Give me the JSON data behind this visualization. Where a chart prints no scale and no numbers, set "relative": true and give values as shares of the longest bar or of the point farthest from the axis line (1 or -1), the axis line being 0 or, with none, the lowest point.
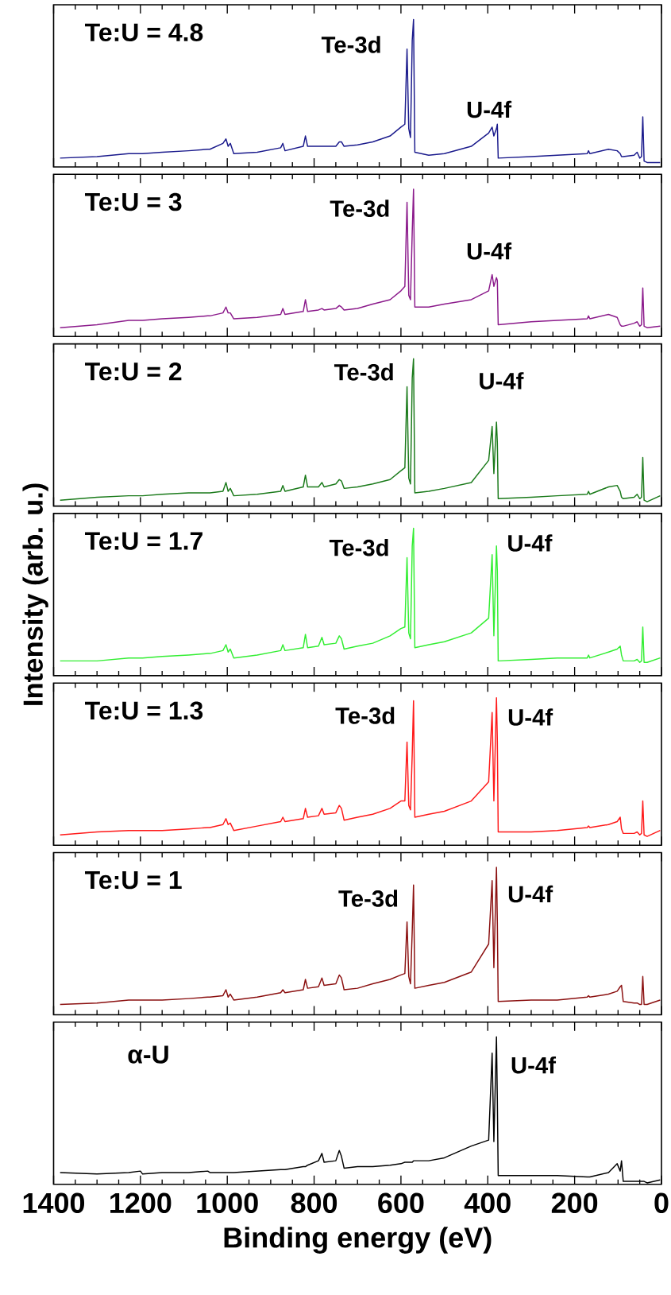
{
  "chart_data": [
    {
      "type": "line",
      "relative": true,
      "color": "#1a1a8c",
      "xlim": [
        1400,
        0
      ],
      "xticks": [
        1400,
        1200,
        1000,
        800,
        600,
        400,
        200,
        0
      ],
      "tick_labels": false,
      "annotations": [
        "Te:U = 4.8",
        "Te-3d",
        "U-4f"
      ],
      "x": [
        1385,
        1300,
        1227,
        1200,
        1195,
        1150,
        1089,
        1045,
        1040,
        1010,
        1003,
        998,
        993,
        985,
        931,
        877,
        872,
        867,
        825,
        820,
        815,
        790,
        782,
        777,
        750,
        742,
        737,
        731,
        700,
        665,
        625,
        600,
        591,
        586,
        582,
        578,
        574,
        571,
        568,
        536,
        500,
        438,
        398,
        390,
        386,
        380,
        378,
        376,
        300,
        240,
        171,
        168,
        165,
        122,
        102,
        95,
        92,
        88,
        63,
        56,
        50,
        46,
        43,
        40,
        33,
        3
      ],
      "values": [
        0.06,
        0.07,
        0.09,
        0.09,
        0.09,
        0.1,
        0.11,
        0.12,
        0.12,
        0.16,
        0.19,
        0.14,
        0.16,
        0.09,
        0.1,
        0.13,
        0.16,
        0.11,
        0.14,
        0.21,
        0.14,
        0.14,
        0.14,
        0.14,
        0.14,
        0.17,
        0.17,
        0.14,
        0.15,
        0.17,
        0.21,
        0.27,
        0.29,
        0.8,
        0.26,
        0.2,
        0.86,
        1,
        0.1,
        0.08,
        0.09,
        0.14,
        0.23,
        0.27,
        0.21,
        0.26,
        0.29,
        0.06,
        0.07,
        0.08,
        0.09,
        0.11,
        0.09,
        0.12,
        0.11,
        0.09,
        0.07,
        0.07,
        0.08,
        0.1,
        0.06,
        0.07,
        0.34,
        0.04,
        0.03,
        0.03
      ]
    },
    {
      "type": "line",
      "relative": true,
      "color": "#8b1a8b",
      "xlim": [
        1400,
        0
      ],
      "xticks": [
        1400,
        1200,
        1000,
        800,
        600,
        400,
        200,
        0
      ],
      "tick_labels": false,
      "annotations": [
        "Te:U = 3",
        "Te-3d",
        "U-4f"
      ],
      "x": [
        1385,
        1300,
        1227,
        1200,
        1195,
        1150,
        1089,
        1045,
        1040,
        1010,
        1003,
        998,
        993,
        985,
        931,
        877,
        872,
        867,
        825,
        820,
        815,
        790,
        782,
        777,
        750,
        742,
        737,
        731,
        700,
        665,
        625,
        600,
        591,
        586,
        582,
        578,
        574,
        571,
        568,
        536,
        500,
        438,
        398,
        390,
        386,
        380,
        378,
        376,
        300,
        240,
        171,
        168,
        165,
        122,
        102,
        95,
        92,
        88,
        63,
        56,
        50,
        46,
        43,
        40,
        33,
        3
      ],
      "values": [
        0.06,
        0.08,
        0.11,
        0.11,
        0.11,
        0.12,
        0.13,
        0.14,
        0.14,
        0.16,
        0.2,
        0.16,
        0.16,
        0.12,
        0.13,
        0.15,
        0.19,
        0.15,
        0.17,
        0.25,
        0.17,
        0.18,
        0.19,
        0.18,
        0.19,
        0.21,
        0.2,
        0.18,
        0.19,
        0.22,
        0.25,
        0.31,
        0.34,
        0.91,
        0.28,
        0.25,
        0.71,
        1,
        0.2,
        0.2,
        0.22,
        0.25,
        0.31,
        0.42,
        0.34,
        0.4,
        0.38,
        0.08,
        0.1,
        0.11,
        0.12,
        0.14,
        0.12,
        0.15,
        0.13,
        0.08,
        0.07,
        0.07,
        0.09,
        0.1,
        0.07,
        0.08,
        0.33,
        0.07,
        0.06,
        0.07
      ]
    },
    {
      "type": "line",
      "relative": true,
      "color": "#1a7a1a",
      "xlim": [
        1400,
        0
      ],
      "xticks": [
        1400,
        1200,
        1000,
        800,
        600,
        400,
        200,
        0
      ],
      "tick_labels": false,
      "annotations": [
        "Te:U = 2",
        "Te-3d",
        "U-4f"
      ],
      "x": [
        1385,
        1300,
        1227,
        1200,
        1195,
        1150,
        1089,
        1045,
        1040,
        1010,
        1003,
        998,
        993,
        985,
        931,
        877,
        872,
        867,
        825,
        820,
        815,
        790,
        782,
        777,
        750,
        742,
        737,
        731,
        700,
        665,
        625,
        600,
        591,
        586,
        582,
        578,
        574,
        571,
        568,
        536,
        500,
        438,
        398,
        390,
        386,
        380,
        378,
        376,
        300,
        240,
        171,
        168,
        165,
        122,
        102,
        95,
        92,
        88,
        63,
        56,
        50,
        46,
        43,
        40,
        33,
        3
      ],
      "values": [
        0.04,
        0.06,
        0.07,
        0.07,
        0.07,
        0.08,
        0.09,
        0.09,
        0.09,
        0.1,
        0.16,
        0.1,
        0.12,
        0.07,
        0.08,
        0.1,
        0.14,
        0.1,
        0.13,
        0.21,
        0.13,
        0.13,
        0.16,
        0.13,
        0.15,
        0.18,
        0.17,
        0.12,
        0.13,
        0.15,
        0.18,
        0.24,
        0.26,
        0.81,
        0.19,
        0.15,
        0.87,
        1,
        0.09,
        0.1,
        0.12,
        0.16,
        0.31,
        0.54,
        0.22,
        0.57,
        0.43,
        0.05,
        0.06,
        0.07,
        0.08,
        0.1,
        0.08,
        0.13,
        0.14,
        0.1,
        0.06,
        0.05,
        0.06,
        0.08,
        0.05,
        0.06,
        0.33,
        0.04,
        0.03,
        0.07
      ]
    },
    {
      "type": "line",
      "relative": true,
      "color": "#33ee33",
      "xlim": [
        1400,
        0
      ],
      "xticks": [
        1400,
        1200,
        1000,
        800,
        600,
        400,
        200,
        0
      ],
      "tick_labels": false,
      "ylabel": "Intensity (arb. u.)",
      "annotations": [
        "Te:U = 1.7",
        "Te-3d",
        "U-4f"
      ],
      "x": [
        1385,
        1300,
        1227,
        1200,
        1195,
        1150,
        1089,
        1045,
        1040,
        1010,
        1003,
        998,
        993,
        985,
        931,
        877,
        872,
        867,
        825,
        820,
        815,
        790,
        782,
        777,
        750,
        742,
        737,
        731,
        700,
        665,
        625,
        600,
        591,
        586,
        582,
        578,
        574,
        571,
        568,
        536,
        500,
        438,
        398,
        390,
        386,
        380,
        378,
        376,
        300,
        240,
        171,
        168,
        165,
        122,
        102,
        95,
        92,
        88,
        63,
        56,
        50,
        46,
        43,
        40,
        33,
        3
      ],
      "values": [
        0.1,
        0.1,
        0.12,
        0.12,
        0.12,
        0.13,
        0.14,
        0.15,
        0.15,
        0.17,
        0.21,
        0.16,
        0.18,
        0.12,
        0.14,
        0.17,
        0.21,
        0.17,
        0.19,
        0.28,
        0.19,
        0.2,
        0.26,
        0.21,
        0.22,
        0.27,
        0.25,
        0.18,
        0.2,
        0.22,
        0.27,
        0.32,
        0.33,
        0.8,
        0.29,
        0.25,
        0.88,
        1,
        0.19,
        0.21,
        0.23,
        0.29,
        0.39,
        0.82,
        0.27,
        0.88,
        0.71,
        0.1,
        0.11,
        0.12,
        0.12,
        0.14,
        0.12,
        0.16,
        0.18,
        0.2,
        0.14,
        0.1,
        0.1,
        0.11,
        0.09,
        0.1,
        0.33,
        0.09,
        0.09,
        0.12
      ]
    },
    {
      "type": "line",
      "relative": true,
      "color": "#ff1a1a",
      "xlim": [
        1400,
        0
      ],
      "xticks": [
        1400,
        1200,
        1000,
        800,
        600,
        400,
        200,
        0
      ],
      "tick_labels": false,
      "annotations": [
        "Te:U = 1.3",
        "Te-3d",
        "U-4f"
      ],
      "x": [
        1385,
        1300,
        1227,
        1200,
        1195,
        1150,
        1089,
        1045,
        1040,
        1010,
        1003,
        998,
        993,
        985,
        931,
        877,
        872,
        867,
        825,
        820,
        815,
        790,
        782,
        777,
        750,
        742,
        737,
        731,
        700,
        665,
        625,
        600,
        591,
        586,
        582,
        578,
        574,
        571,
        568,
        536,
        500,
        438,
        398,
        390,
        386,
        380,
        378,
        376,
        300,
        240,
        171,
        168,
        165,
        122,
        102,
        95,
        92,
        88,
        63,
        56,
        50,
        46,
        43,
        40,
        33,
        3
      ],
      "values": [
        0.07,
        0.09,
        0.1,
        0.1,
        0.1,
        0.1,
        0.11,
        0.12,
        0.12,
        0.14,
        0.18,
        0.14,
        0.15,
        0.1,
        0.13,
        0.16,
        0.19,
        0.16,
        0.18,
        0.25,
        0.19,
        0.2,
        0.25,
        0.21,
        0.22,
        0.27,
        0.25,
        0.17,
        0.19,
        0.21,
        0.25,
        0.3,
        0.3,
        0.7,
        0.27,
        0.24,
        0.62,
        0.98,
        0.19,
        0.21,
        0.23,
        0.3,
        0.43,
        0.9,
        0.3,
        1,
        0.71,
        0.09,
        0.09,
        0.1,
        0.12,
        0.13,
        0.12,
        0.14,
        0.16,
        0.19,
        0.11,
        0.08,
        0.08,
        0.09,
        0.07,
        0.08,
        0.3,
        0.07,
        0.06,
        0.1
      ]
    },
    {
      "type": "line",
      "relative": true,
      "color": "#8b1010",
      "xlim": [
        1400,
        0
      ],
      "xticks": [
        1400,
        1200,
        1000,
        800,
        600,
        400,
        200,
        0
      ],
      "tick_labels": false,
      "annotations": [
        "Te:U = 1",
        "Te-3d",
        "U-4f"
      ],
      "x": [
        1385,
        1300,
        1227,
        1200,
        1195,
        1150,
        1089,
        1045,
        1040,
        1010,
        1003,
        998,
        993,
        985,
        931,
        877,
        872,
        867,
        825,
        820,
        815,
        790,
        782,
        777,
        750,
        742,
        737,
        731,
        700,
        665,
        625,
        600,
        591,
        586,
        582,
        578,
        574,
        571,
        568,
        536,
        500,
        438,
        398,
        390,
        386,
        380,
        378,
        376,
        300,
        240,
        171,
        168,
        165,
        122,
        102,
        95,
        92,
        88,
        63,
        56,
        50,
        46,
        43,
        40,
        33,
        3
      ],
      "values": [
        0.07,
        0.08,
        0.1,
        0.1,
        0.1,
        0.1,
        0.11,
        0.12,
        0.12,
        0.13,
        0.17,
        0.12,
        0.14,
        0.1,
        0.12,
        0.15,
        0.17,
        0.15,
        0.17,
        0.24,
        0.18,
        0.19,
        0.25,
        0.2,
        0.21,
        0.27,
        0.25,
        0.17,
        0.18,
        0.21,
        0.24,
        0.27,
        0.28,
        0.63,
        0.26,
        0.21,
        0.57,
        0.88,
        0.18,
        0.2,
        0.22,
        0.29,
        0.48,
        0.91,
        0.32,
        1,
        0.63,
        0.09,
        0.1,
        0.1,
        0.12,
        0.13,
        0.12,
        0.14,
        0.16,
        0.19,
        0.2,
        0.09,
        0.08,
        0.08,
        0.07,
        0.07,
        0.26,
        0.07,
        0.07,
        0.1
      ]
    },
    {
      "type": "line",
      "relative": true,
      "color": "#000000",
      "xlim": [
        1400,
        0
      ],
      "xticks": [
        1400,
        1200,
        1000,
        800,
        600,
        400,
        200,
        0
      ],
      "tick_labels": "x",
      "xlabel": "Binding energy (eV)",
      "annotations": [
        "α-U",
        "U-4f"
      ],
      "x": [
        1385,
        1300,
        1227,
        1200,
        1195,
        1150,
        1089,
        1045,
        1040,
        1010,
        1003,
        998,
        993,
        985,
        931,
        877,
        872,
        867,
        825,
        820,
        815,
        790,
        782,
        777,
        750,
        742,
        737,
        731,
        700,
        665,
        625,
        600,
        591,
        586,
        582,
        578,
        574,
        571,
        568,
        536,
        500,
        438,
        398,
        390,
        386,
        380,
        378,
        376,
        300,
        240,
        171,
        168,
        165,
        122,
        102,
        95,
        92,
        88,
        63,
        56,
        50,
        46,
        43,
        40,
        33,
        3
      ],
      "values": [
        0.08,
        0.07,
        0.08,
        0.09,
        0.07,
        0.08,
        0.08,
        0.09,
        0.08,
        0.08,
        0.08,
        0.08,
        0.08,
        0.08,
        0.09,
        0.1,
        0.1,
        0.1,
        0.12,
        0.12,
        0.13,
        0.16,
        0.21,
        0.15,
        0.16,
        0.23,
        0.19,
        0.11,
        0.12,
        0.12,
        0.13,
        0.14,
        0.15,
        0.15,
        0.15,
        0.15,
        0.15,
        0.16,
        0.16,
        0.16,
        0.18,
        0.26,
        0.3,
        0.89,
        0.29,
        1,
        0.57,
        0.06,
        0.06,
        0.06,
        0.05,
        0.05,
        0.05,
        0.08,
        0.14,
        0.09,
        0.16,
        0.02,
        0.02,
        0.02,
        0.02,
        0.02,
        0.02,
        0.02,
        0.01,
        0.03
      ]
    }
  ]
}
